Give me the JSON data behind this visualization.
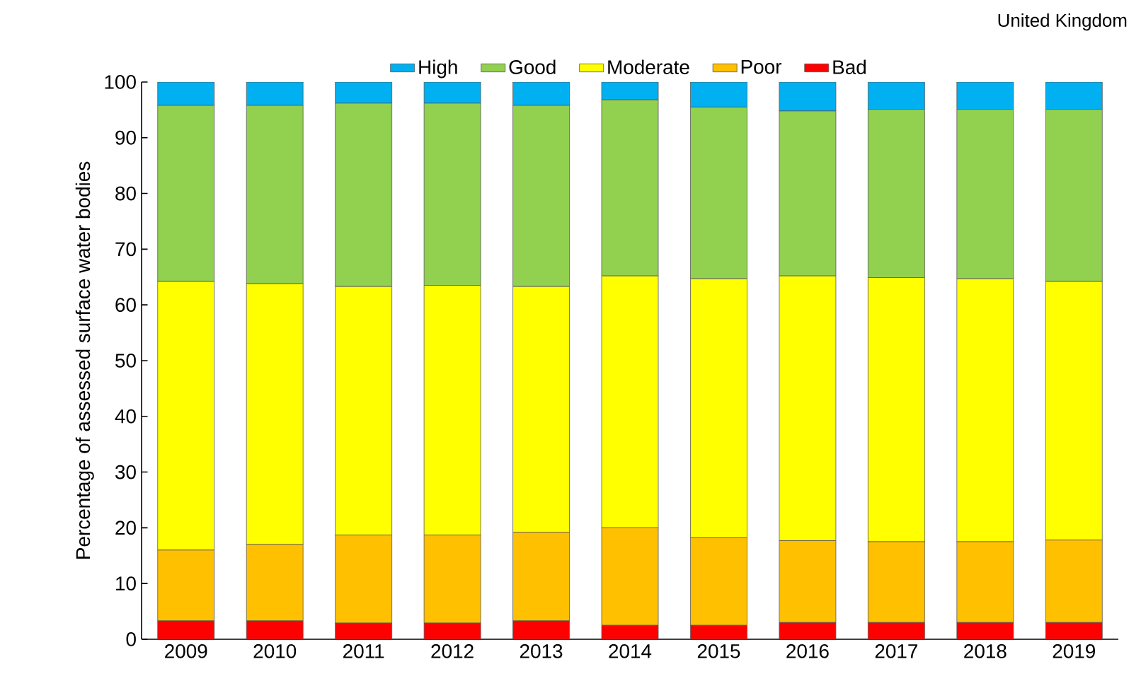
{
  "chart_data": {
    "type": "bar",
    "stacked": true,
    "title": "United Kingdom",
    "ylabel": "Percentage of assessed surface water bodies",
    "categories": [
      "2009",
      "2010",
      "2011",
      "2012",
      "2013",
      "2014",
      "2015",
      "2016",
      "2017",
      "2018",
      "2019"
    ],
    "series": [
      {
        "name": "Bad",
        "color": "#ff0000",
        "values": [
          3.3,
          3.3,
          2.9,
          2.9,
          3.3,
          2.5,
          2.5,
          3.0,
          3.0,
          3.0,
          3.0
        ]
      },
      {
        "name": "Poor",
        "color": "#ffc000",
        "values": [
          12.7,
          13.7,
          15.8,
          15.8,
          15.9,
          17.5,
          15.7,
          14.7,
          14.5,
          14.5,
          14.8
        ]
      },
      {
        "name": "Moderate",
        "color": "#ffff00",
        "values": [
          48.2,
          46.8,
          44.6,
          44.8,
          44.1,
          45.2,
          46.5,
          47.5,
          47.4,
          47.2,
          46.4
        ]
      },
      {
        "name": "Good",
        "color": "#92d050",
        "values": [
          31.6,
          32.0,
          32.9,
          32.7,
          32.5,
          31.6,
          30.8,
          29.6,
          30.2,
          30.4,
          30.9
        ]
      },
      {
        "name": "High",
        "color": "#00b0f0",
        "values": [
          4.2,
          4.2,
          3.8,
          3.8,
          4.2,
          3.2,
          4.5,
          5.2,
          4.9,
          4.9,
          4.9
        ]
      }
    ],
    "ylim": [
      0,
      100
    ],
    "yticks": [
      0,
      10,
      20,
      30,
      40,
      50,
      60,
      70,
      80,
      90,
      100
    ],
    "grid": false,
    "legend": "top"
  }
}
